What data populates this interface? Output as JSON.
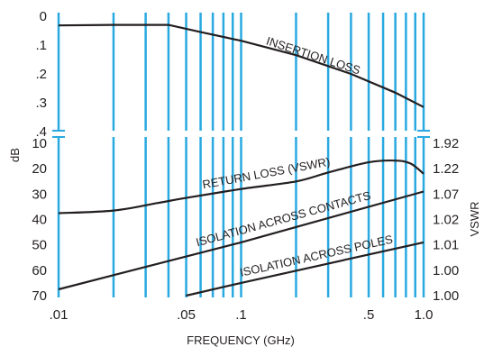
{
  "chart_data": {
    "type": "line",
    "xlabel": "FREQUENCY (GHz)",
    "x_scale": "log",
    "x_range": [
      0.01,
      1.0
    ],
    "x_tick_labels": [
      {
        "value": 0.01,
        "label": ".01"
      },
      {
        "value": 0.05,
        "label": ".05"
      },
      {
        "value": 0.1,
        "label": ".1"
      },
      {
        "value": 0.5,
        "label": ".5"
      },
      {
        "value": 1.0,
        "label": "1.0"
      }
    ],
    "grid": "vertical lines at 0.01–0.09 and 0.1–1.0 steps",
    "left_axis_label": "dB",
    "right_axis_label": "VSWR",
    "upper_panel": {
      "ylim": [
        0,
        0.45
      ],
      "y_tick_labels": [
        "0",
        ".1",
        ".2",
        ".3",
        ".4"
      ],
      "y_tick_values": [
        0,
        0.1,
        0.2,
        0.3,
        0.4
      ],
      "series": [
        {
          "name": "INSERTION LOSS",
          "points": [
            [
              0.01,
              0.032
            ],
            [
              0.02,
              0.03
            ],
            [
              0.04,
              0.03
            ],
            [
              0.06,
              0.055
            ],
            [
              0.1,
              0.085
            ],
            [
              0.2,
              0.135
            ],
            [
              0.4,
              0.2
            ],
            [
              0.7,
              0.265
            ],
            [
              1.0,
              0.315
            ]
          ]
        }
      ]
    },
    "lower_panel": {
      "ylim": [
        10,
        70
      ],
      "y_tick_labels": [
        "10",
        "20",
        "30",
        "40",
        "50",
        "60",
        "70"
      ],
      "y_tick_values": [
        10,
        20,
        30,
        40,
        50,
        60,
        70
      ],
      "right_tick_labels": [
        "1.92",
        "1.22",
        "1.07",
        "1.02",
        "1.01",
        "1.00",
        "1.00"
      ],
      "series": [
        {
          "name": "RETURN LOSS (VSWR)",
          "points": [
            [
              0.01,
              37.5
            ],
            [
              0.02,
              36.5
            ],
            [
              0.035,
              33.5
            ],
            [
              0.05,
              31.5
            ],
            [
              0.1,
              28
            ],
            [
              0.2,
              25
            ],
            [
              0.3,
              21.5
            ],
            [
              0.5,
              17.5
            ],
            [
              0.7,
              16.8
            ],
            [
              0.85,
              18
            ],
            [
              1.0,
              22
            ]
          ]
        },
        {
          "name": "ISOLATION ACROSS CONTACTS",
          "points": [
            [
              0.01,
              67.5
            ],
            [
              0.1,
              49
            ],
            [
              1.0,
              29
            ]
          ]
        },
        {
          "name": "ISOLATION ACROSS POLES",
          "points": [
            [
              0.05,
              70
            ],
            [
              0.1,
              65
            ],
            [
              1.0,
              49
            ]
          ]
        }
      ]
    }
  }
}
